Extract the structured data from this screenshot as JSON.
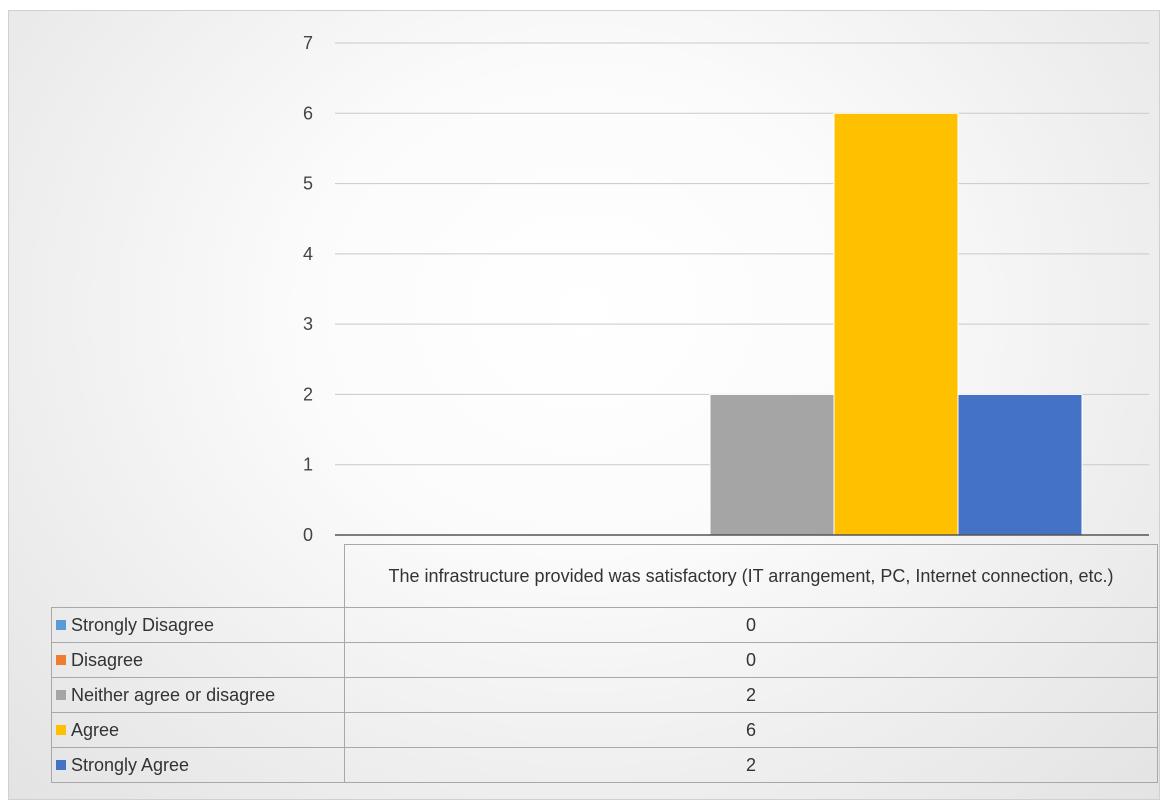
{
  "chart_data": {
    "type": "bar",
    "categories": [
      "The infrastructure provided was satisfactory (IT arrangement, PC, Internet connection, etc.)"
    ],
    "series": [
      {
        "name": "Strongly Disagree",
        "values": [
          0
        ],
        "color": "#5b9bd5"
      },
      {
        "name": "Disagree",
        "values": [
          0
        ],
        "color": "#ed7d31"
      },
      {
        "name": "Neither agree or disagree",
        "values": [
          2
        ],
        "color": "#a5a5a5"
      },
      {
        "name": "Agree",
        "values": [
          6
        ],
        "color": "#ffc000"
      },
      {
        "name": "Strongly Agree",
        "values": [
          2
        ],
        "color": "#4472c4"
      }
    ],
    "ylim": [
      0,
      7
    ],
    "yticks": [
      "0",
      "1",
      "2",
      "3",
      "4",
      "5",
      "6",
      "7"
    ],
    "grid": true,
    "legend": "data table with legend keys below the plot",
    "title": "",
    "xlabel": "",
    "ylabel": ""
  }
}
